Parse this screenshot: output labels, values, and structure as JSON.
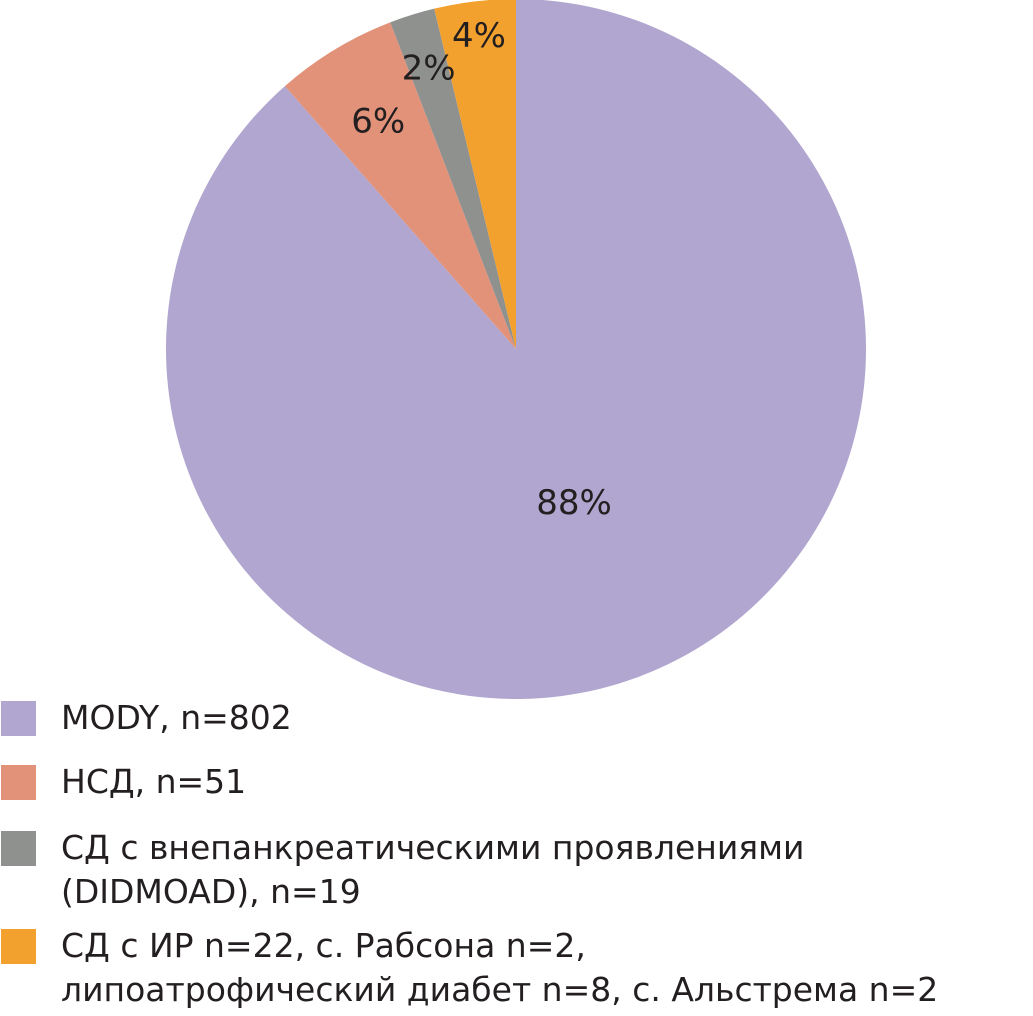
{
  "chart_data": {
    "type": "pie",
    "title": "",
    "start_angle_deg": 0,
    "direction": "clockwise",
    "slices": [
      {
        "label": "MODY, n=802",
        "percent_label": "88%",
        "value": 802,
        "color": "#b0a6cf"
      },
      {
        "label": "НСД, n=51",
        "percent_label": "6%",
        "value": 51,
        "color": "#e3927a"
      },
      {
        "label": "СД с внепанкреатическими проявлениями (DIDMOAD), n=19",
        "percent_label": "2%",
        "value": 19,
        "color": "#8f918f"
      },
      {
        "label": "СД с ИР n=22, с. Рабсона n=2, липоатрофический диабет n=8, с. Альстрема n=2",
        "percent_label": "4%",
        "value": 34,
        "color": "#f3a12e"
      }
    ],
    "legend": {
      "placement": "bottom-left",
      "entries": [
        {
          "lines": [
            "MODY, n=802"
          ],
          "color": "#b0a6cf"
        },
        {
          "lines": [
            "НСД, n=51"
          ],
          "color": "#e3927a"
        },
        {
          "lines": [
            "СД с внепанкреатическими проявлениями",
            "(DIDMOAD), n=19"
          ],
          "color": "#8f918f"
        },
        {
          "lines": [
            "СД с ИР n=22, с. Рабсона n=2,",
            "липоатрофический диабет n=8, с. Альстрема n=2"
          ],
          "color": "#f3a12e"
        }
      ]
    }
  }
}
